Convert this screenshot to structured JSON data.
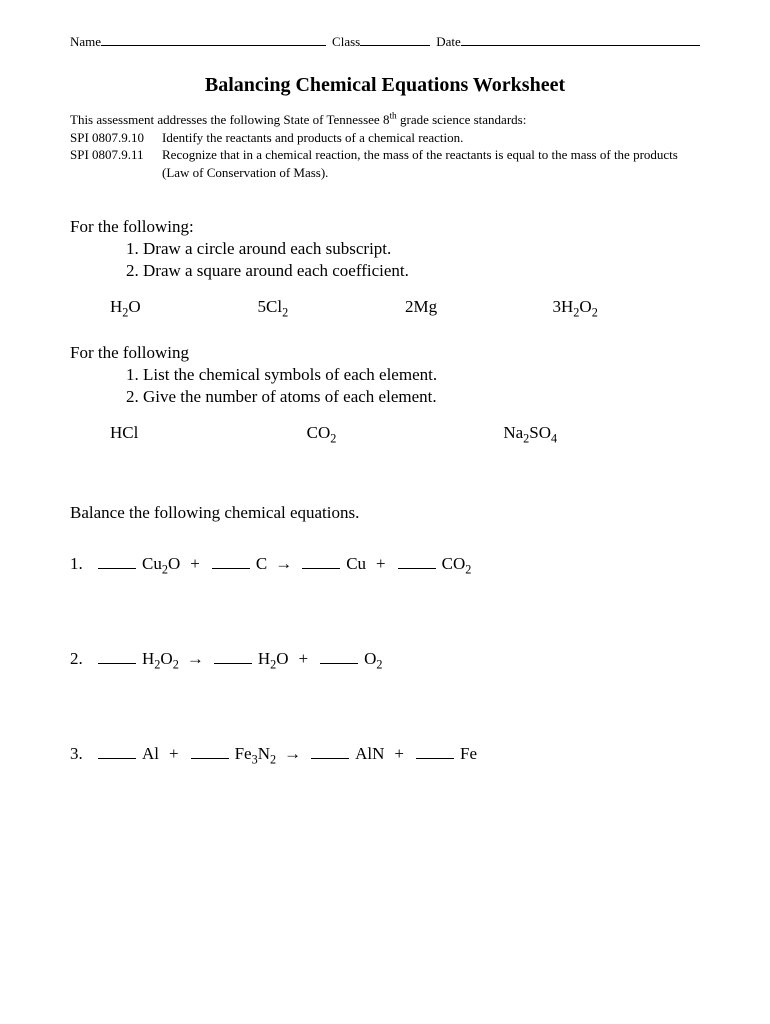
{
  "header": {
    "name_label": "Name",
    "class_label": "Class",
    "date_label": "Date"
  },
  "title": "Balancing Chemical Equations Worksheet",
  "standards": {
    "intro_prefix": "This assessment addresses the following State of Tennessee 8",
    "intro_sup": "th",
    "intro_suffix": " grade science standards:",
    "rows": [
      {
        "code": "SPI 0807.9.10",
        "desc": "Identify the reactants and products of a chemical reaction."
      },
      {
        "code": "SPI 0807.9.11",
        "desc": "Recognize that in a chemical reaction, the mass of the reactants is equal to the mass of the products (Law of Conservation of Mass)."
      }
    ]
  },
  "section1": {
    "intro": "For the following:",
    "item1": "1.  Draw a circle around each subscript.",
    "item2": "2.  Draw a square around each coefficient.",
    "formulas": {
      "f1": {
        "coeff": "",
        "sym1": "H",
        "sub1": "2",
        "sym2": "O",
        "sub2": ""
      },
      "f2": {
        "coeff": "5",
        "sym1": "Cl",
        "sub1": "2",
        "sym2": "",
        "sub2": ""
      },
      "f3": {
        "coeff": "2",
        "sym1": "Mg",
        "sub1": "",
        "sym2": "",
        "sub2": ""
      },
      "f4": {
        "coeff": "3",
        "sym1": "H",
        "sub1": "2",
        "sym2": "O",
        "sub2": "2"
      }
    }
  },
  "section2": {
    "intro": "For the following",
    "item1": "1.  List the chemical symbols of each element.",
    "item2": "2.  Give the number of atoms of each element.",
    "formulas": {
      "f1": {
        "parts": [
          {
            "t": "H"
          },
          {
            "t": "Cl"
          }
        ]
      },
      "f2": {
        "parts": [
          {
            "t": "C"
          },
          {
            "t": "O"
          },
          {
            "s": "2"
          }
        ]
      },
      "f3": {
        "parts": [
          {
            "t": "Na"
          },
          {
            "s": "2"
          },
          {
            "t": "S"
          },
          {
            "t": "O"
          },
          {
            "s": "4"
          }
        ]
      }
    }
  },
  "balance": {
    "heading": "Balance the following chemical equations.",
    "arrow": "→",
    "plus": "+",
    "equations": [
      {
        "num": "1.",
        "terms": [
          {
            "blank": true,
            "f": [
              {
                "t": "Cu"
              },
              {
                "s": "2"
              },
              {
                "t": "O"
              }
            ]
          },
          {
            "op": "+"
          },
          {
            "blank": true,
            "f": [
              {
                "t": "C"
              }
            ]
          },
          {
            "op": "→"
          },
          {
            "blank": true,
            "f": [
              {
                "t": "Cu"
              }
            ]
          },
          {
            "op": "+"
          },
          {
            "blank": true,
            "f": [
              {
                "t": "CO"
              },
              {
                "s": "2"
              }
            ]
          }
        ]
      },
      {
        "num": "2.",
        "terms": [
          {
            "blank": true,
            "f": [
              {
                "t": "H"
              },
              {
                "s": "2"
              },
              {
                "t": "O"
              },
              {
                "s": "2"
              }
            ]
          },
          {
            "op": "→"
          },
          {
            "blank": true,
            "f": [
              {
                "t": "H"
              },
              {
                "s": "2"
              },
              {
                "t": "O"
              }
            ]
          },
          {
            "op": "+"
          },
          {
            "blank": true,
            "f": [
              {
                "t": "O"
              },
              {
                "s": "2"
              }
            ]
          }
        ]
      },
      {
        "num": "3.",
        "terms": [
          {
            "blank": true,
            "f": [
              {
                "t": "Al"
              }
            ]
          },
          {
            "op": "+"
          },
          {
            "blank": true,
            "f": [
              {
                "t": "Fe"
              },
              {
                "s": "3"
              },
              {
                "t": "N"
              },
              {
                "s": "2"
              }
            ]
          },
          {
            "op": "→"
          },
          {
            "blank": true,
            "f": [
              {
                "t": "AlN"
              }
            ]
          },
          {
            "op": "+"
          },
          {
            "blank": true,
            "f": [
              {
                "t": "Fe"
              }
            ]
          }
        ]
      }
    ]
  }
}
